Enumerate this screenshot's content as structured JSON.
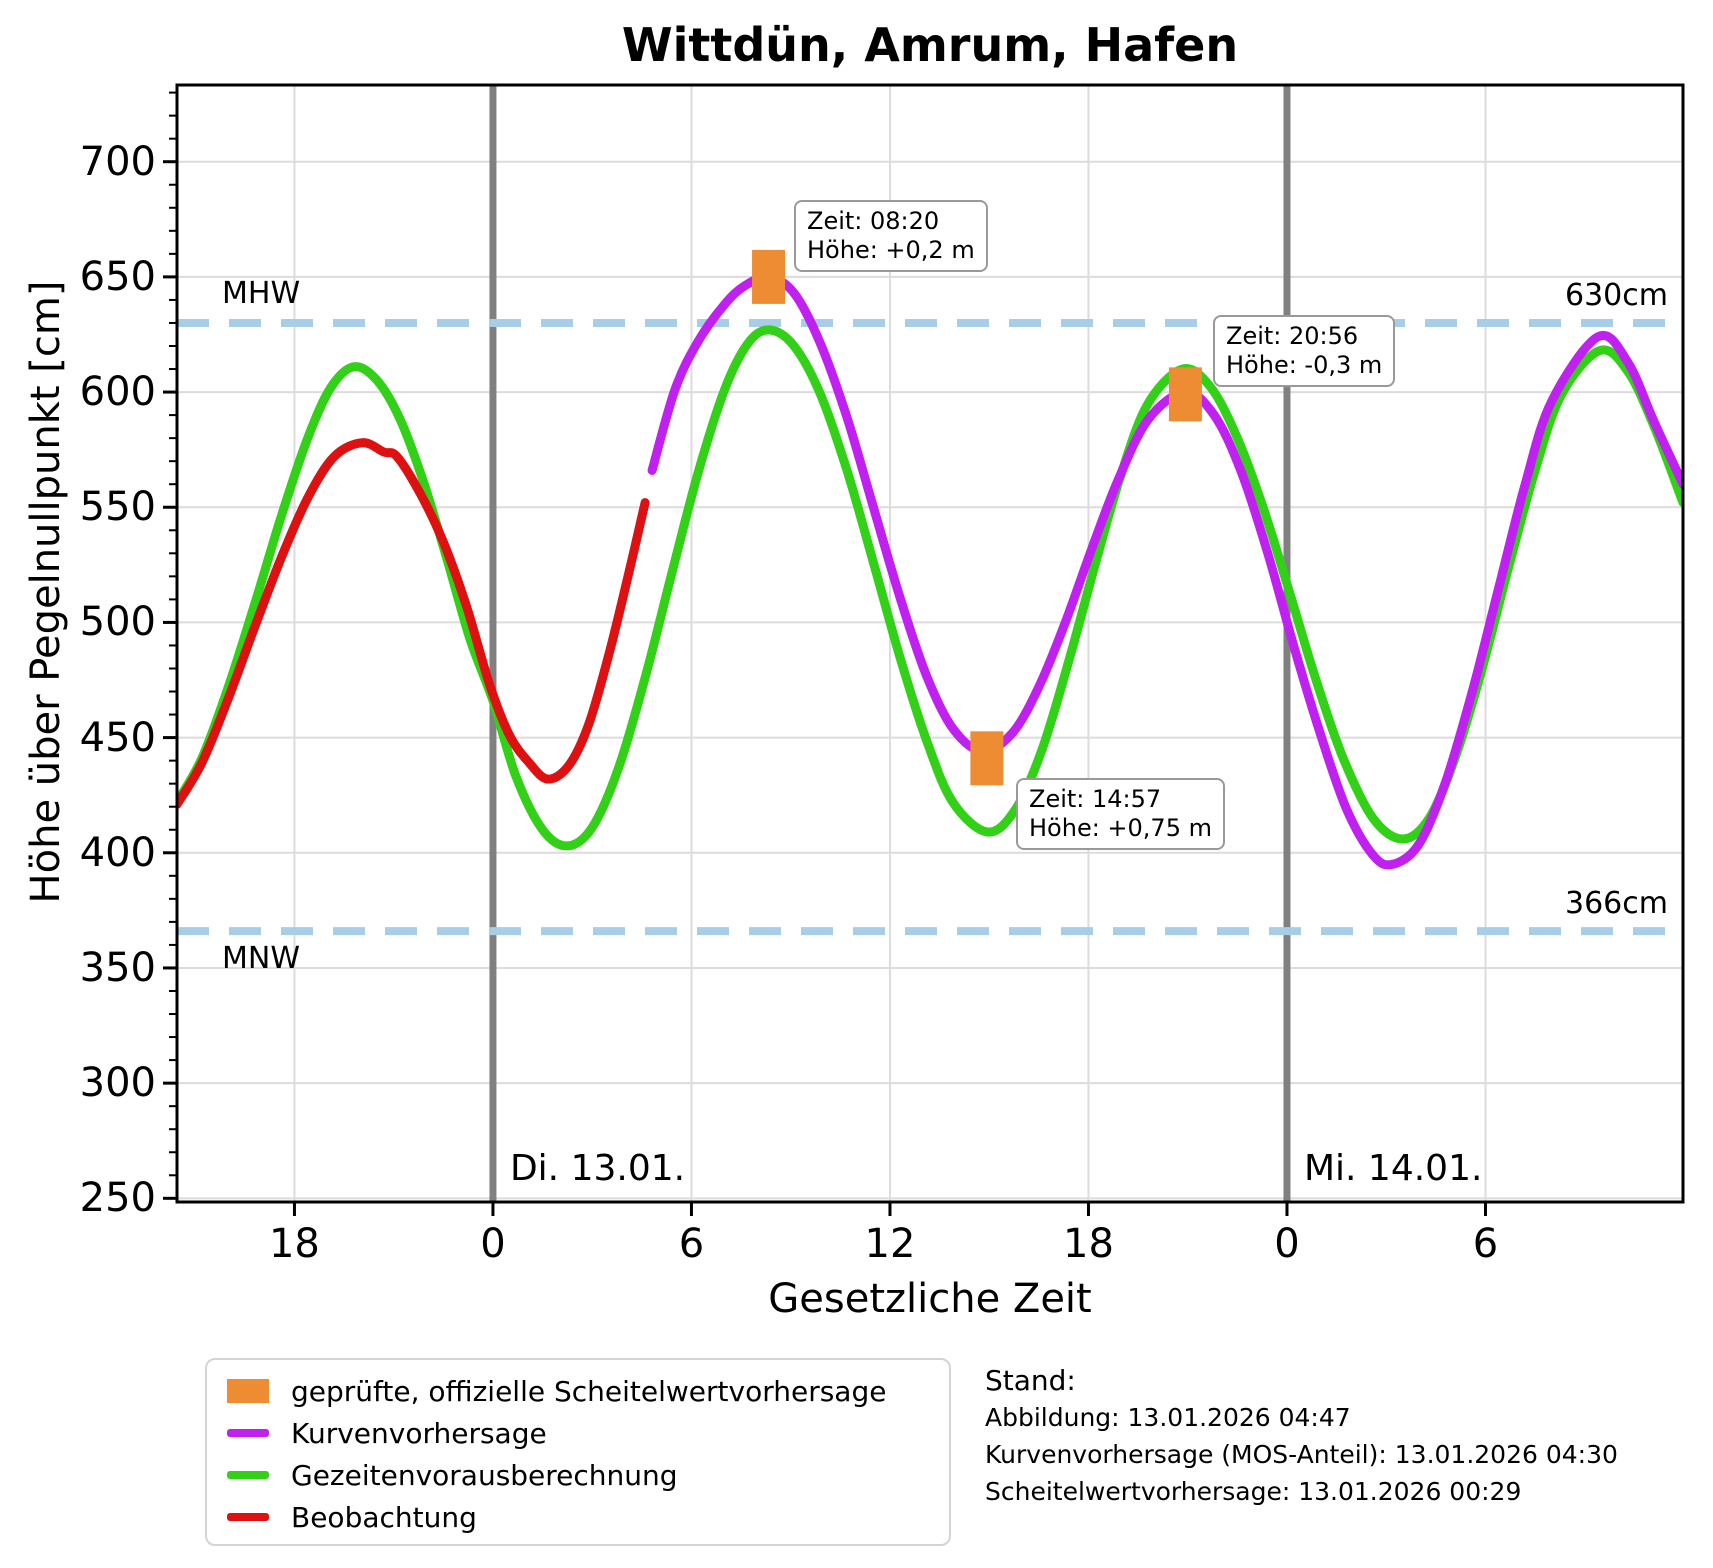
{
  "title": "Wittdün, Amrum, Hafen",
  "colors": {
    "beobachtung": "#dd1111",
    "kurvenvorhersage": "#c020f0",
    "gezeitenvorausberechnung": "#32d118",
    "scheitelwert": "#ee8c33",
    "reference": "#a7cde8",
    "grid": "#dcdcdc",
    "dayline": "#808080",
    "axis": "#000000"
  },
  "chart_data": {
    "type": "line",
    "station": "Wittdün, Amrum, Hafen",
    "xlabel": "Gesetzliche Zeit",
    "ylabel": "Höhe über Pegelnullpunkt [cm]",
    "x_unit": "Stunden relativ zu 13.01.2026 00:00",
    "y_unit": "cm über Pegelnullpunkt",
    "xlim": [
      -9.55,
      35.97
    ],
    "ylim": [
      248.4,
      733.3
    ],
    "yticks": [
      {
        "v": 250,
        "label": "250"
      },
      {
        "v": 300,
        "label": "300"
      },
      {
        "v": 350,
        "label": "350"
      },
      {
        "v": 400,
        "label": "400"
      },
      {
        "v": 450,
        "label": "450"
      },
      {
        "v": 500,
        "label": "500"
      },
      {
        "v": 550,
        "label": "550"
      },
      {
        "v": 600,
        "label": "600"
      },
      {
        "v": 650,
        "label": "650"
      },
      {
        "v": 700,
        "label": "700"
      }
    ],
    "y_minor_step": 10,
    "xticks": [
      {
        "t": -6,
        "label": "18"
      },
      {
        "t": 0,
        "label": "0"
      },
      {
        "t": 6,
        "label": "6"
      },
      {
        "t": 12,
        "label": "12"
      },
      {
        "t": 18,
        "label": "18"
      },
      {
        "t": 24,
        "label": "0"
      },
      {
        "t": 30,
        "label": "6"
      }
    ],
    "day_lines": [
      {
        "t": 0,
        "label": "Di. 13.01."
      },
      {
        "t": 24,
        "label": "Mi. 14.01."
      }
    ],
    "reference_lines": [
      {
        "name": "MHW",
        "value_cm": 630,
        "label_left": "MHW",
        "label_right": "630cm"
      },
      {
        "name": "MNW",
        "value_cm": 366,
        "label_left": "MNW",
        "label_right": "366cm"
      }
    ],
    "series": [
      {
        "name": "Gezeitenvorausberechnung",
        "color_key": "gezeitenvorausberechnung",
        "points": [
          [
            -9.55,
            422
          ],
          [
            -8.8,
            441
          ],
          [
            -8.0,
            472
          ],
          [
            -7.2,
            508
          ],
          [
            -6.4,
            546
          ],
          [
            -5.6,
            580
          ],
          [
            -4.9,
            602
          ],
          [
            -4.2,
            611
          ],
          [
            -3.5,
            605
          ],
          [
            -2.8,
            588
          ],
          [
            -2.1,
            561
          ],
          [
            -1.4,
            528
          ],
          [
            -0.7,
            493
          ],
          [
            0,
            466
          ],
          [
            0.7,
            433
          ],
          [
            1.5,
            410
          ],
          [
            2.25,
            403
          ],
          [
            3.0,
            411
          ],
          [
            3.8,
            437
          ],
          [
            4.6,
            476
          ],
          [
            5.4,
            521
          ],
          [
            6.2,
            565
          ],
          [
            7.0,
            601
          ],
          [
            7.7,
            621
          ],
          [
            8.35,
            627
          ],
          [
            9.1,
            620
          ],
          [
            9.9,
            599
          ],
          [
            10.7,
            566
          ],
          [
            11.5,
            526
          ],
          [
            12.3,
            485
          ],
          [
            13.1,
            449
          ],
          [
            13.9,
            422
          ],
          [
            14.95,
            409
          ],
          [
            15.8,
            419
          ],
          [
            16.6,
            445
          ],
          [
            17.4,
            483
          ],
          [
            18.2,
            525
          ],
          [
            19.0,
            565
          ],
          [
            19.8,
            595
          ],
          [
            20.85,
            610
          ],
          [
            21.7,
            602
          ],
          [
            22.5,
            580
          ],
          [
            23.3,
            549
          ],
          [
            24.1,
            512
          ],
          [
            24.9,
            474
          ],
          [
            25.7,
            441
          ],
          [
            26.6,
            415
          ],
          [
            27.5,
            406
          ],
          [
            28.3,
            415
          ],
          [
            29.1,
            442
          ],
          [
            29.9,
            480
          ],
          [
            30.7,
            524
          ],
          [
            31.5,
            566
          ],
          [
            32.3,
            599
          ],
          [
            33.45,
            618
          ],
          [
            34.3,
            609
          ],
          [
            35.1,
            585
          ],
          [
            35.97,
            552
          ]
        ]
      },
      {
        "name": "Beobachtung",
        "color_key": "beobachtung",
        "points": [
          [
            -9.55,
            421
          ],
          [
            -8.8,
            439
          ],
          [
            -8.0,
            467
          ],
          [
            -7.2,
            498
          ],
          [
            -6.4,
            528
          ],
          [
            -5.6,
            554
          ],
          [
            -4.8,
            572
          ],
          [
            -3.95,
            578
          ],
          [
            -3.3,
            574
          ],
          [
            -2.9,
            572
          ],
          [
            -2.2,
            556
          ],
          [
            -1.5,
            535
          ],
          [
            -0.8,
            507
          ],
          [
            -0.1,
            473
          ],
          [
            0.5,
            451
          ],
          [
            1.1,
            439
          ],
          [
            1.66,
            432
          ],
          [
            2.3,
            438
          ],
          [
            2.9,
            456
          ],
          [
            3.5,
            486
          ],
          [
            4.05,
            518
          ],
          [
            4.6,
            552
          ]
        ]
      },
      {
        "name": "Kurvenvorhersage",
        "color_key": "kurvenvorhersage",
        "points": [
          [
            4.81,
            566
          ],
          [
            5.5,
            601
          ],
          [
            6.2,
            622
          ],
          [
            7.0,
            638
          ],
          [
            7.6,
            646
          ],
          [
            8.33,
            650
          ],
          [
            9.1,
            643
          ],
          [
            9.9,
            621
          ],
          [
            10.7,
            589
          ],
          [
            11.5,
            550
          ],
          [
            12.3,
            511
          ],
          [
            13.1,
            477
          ],
          [
            13.9,
            454
          ],
          [
            14.8,
            444
          ],
          [
            15.7,
            452
          ],
          [
            16.5,
            472
          ],
          [
            17.3,
            500
          ],
          [
            18.1,
            532
          ],
          [
            18.9,
            562
          ],
          [
            19.8,
            588
          ],
          [
            20.92,
            600
          ],
          [
            21.8,
            590
          ],
          [
            22.6,
            566
          ],
          [
            23.4,
            531
          ],
          [
            24.2,
            490
          ],
          [
            25.0,
            452
          ],
          [
            25.8,
            419
          ],
          [
            26.6,
            399
          ],
          [
            27.2,
            395
          ],
          [
            28.0,
            404
          ],
          [
            28.8,
            431
          ],
          [
            29.6,
            470
          ],
          [
            30.4,
            515
          ],
          [
            31.2,
            560
          ],
          [
            32.0,
            596
          ],
          [
            33.4,
            624
          ],
          [
            34.3,
            613
          ],
          [
            35.1,
            587
          ],
          [
            35.97,
            560
          ]
        ]
      }
    ],
    "scheitelwerte": [
      {
        "t": 8.33,
        "v": 650,
        "zeit": "Zeit: 08:20",
        "hoehe": "Höhe: +0,2 m"
      },
      {
        "t": 14.93,
        "v": 441,
        "zeit": "Zeit: 14:57",
        "hoehe": "Höhe: +0,75 m"
      },
      {
        "t": 20.93,
        "v": 599,
        "zeit": "Zeit: 20:56",
        "hoehe": "Höhe: -0,3 m"
      }
    ]
  },
  "legend": {
    "items": [
      {
        "label": "geprüfte, offizielle Scheitelwertvorhersage",
        "color_key": "scheitelwert",
        "swatch": "rect"
      },
      {
        "label": "Kurvenvorhersage",
        "color_key": "kurvenvorhersage",
        "swatch": "line"
      },
      {
        "label": "Gezeitenvorausberechnung",
        "color_key": "gezeitenvorausberechnung",
        "swatch": "line"
      },
      {
        "label": "Beobachtung",
        "color_key": "beobachtung",
        "swatch": "line"
      }
    ]
  },
  "footer": {
    "stand_label": "Stand:",
    "lines": [
      "Abbildung: 13.01.2026 04:47",
      "Kurvenvorhersage (MOS-Anteil): 13.01.2026 04:30",
      "Scheitelwertvorhersage: 13.01.2026 00:29"
    ]
  }
}
